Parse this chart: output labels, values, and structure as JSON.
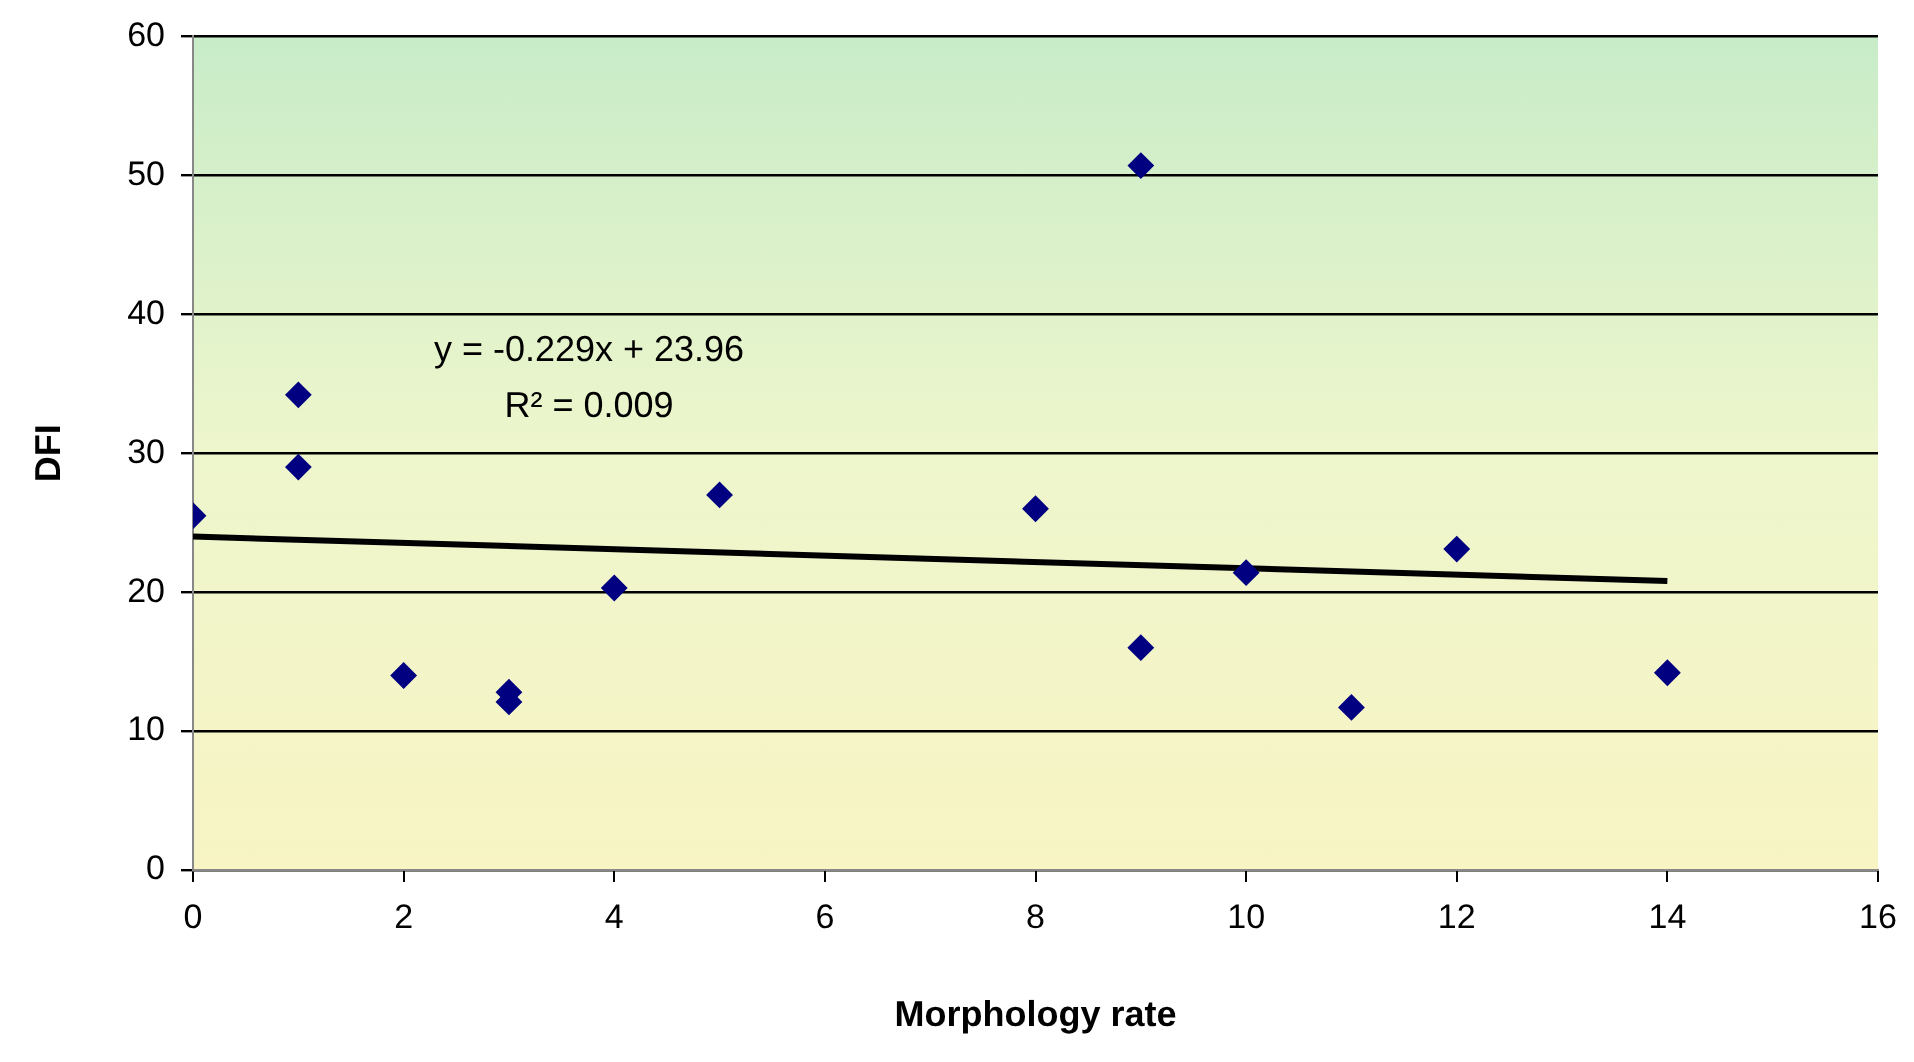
{
  "chart_data": {
    "type": "scatter",
    "xlabel": "Morphology rate",
    "ylabel": "DFI",
    "annotations": [
      "y = -0.229x + 23.96",
      "R² = 0.009"
    ],
    "xlim": [
      0,
      16
    ],
    "xticks": [
      0,
      2,
      4,
      6,
      8,
      10,
      12,
      14,
      16
    ],
    "ylim": [
      0,
      60
    ],
    "yticks": [
      0,
      10,
      20,
      30,
      40,
      50,
      60
    ],
    "grid": "y",
    "legend": false,
    "marker": "diamond",
    "series": [
      {
        "color": "#000080",
        "x": [
          0,
          1,
          1,
          2,
          3,
          3,
          4,
          5,
          8,
          9,
          9,
          10,
          11,
          12,
          14
        ],
        "values": [
          25.5,
          34.2,
          29,
          14,
          12.8,
          12.1,
          20.3,
          27,
          26,
          50.7,
          16,
          21.4,
          11.7,
          23.1,
          14.2
        ]
      },
      {
        "type": "line",
        "color": "#000000",
        "marker": "none",
        "x": [
          0,
          14
        ],
        "values": [
          24,
          20.8
        ]
      }
    ]
  }
}
